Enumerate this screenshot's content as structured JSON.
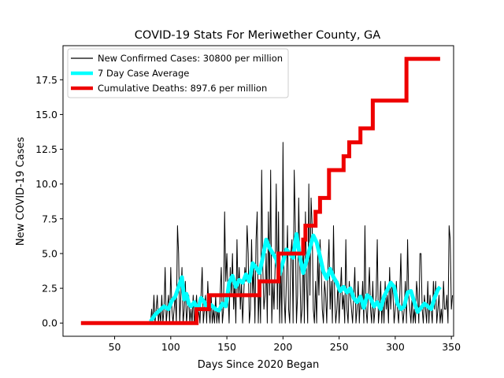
{
  "chart_data": {
    "type": "line",
    "title": "COVID-19 Stats For Meriwether County, GA",
    "xlabel": "Days Since 2020 Began",
    "ylabel": "New COVID-19 Cases",
    "xlim": [
      4,
      352
    ],
    "ylim": [
      -0.95,
      19.95
    ],
    "xticks": [
      50,
      100,
      150,
      200,
      250,
      300,
      350
    ],
    "yticks": [
      0.0,
      2.5,
      5.0,
      7.5,
      10.0,
      12.5,
      15.0,
      17.5
    ],
    "ytick_labels": [
      "0.0",
      "2.5",
      "5.0",
      "7.5",
      "10.0",
      "12.5",
      "15.0",
      "17.5"
    ],
    "grid": false,
    "legend_position": "upper-left",
    "series": [
      {
        "name": "New Confirmed Cases: 30800 per million",
        "color": "#000000",
        "x_start": 82,
        "values": [
          0,
          1,
          0,
          2,
          0,
          1,
          2,
          0,
          1,
          0,
          2,
          0,
          1,
          4,
          0,
          1,
          2,
          0,
          4,
          1,
          0,
          1,
          2,
          0,
          7,
          5,
          0,
          2,
          4,
          0,
          1,
          3,
          0,
          1,
          2,
          0,
          1,
          0,
          2,
          0,
          1,
          2,
          0,
          1,
          0,
          2,
          4,
          0,
          1,
          2,
          0,
          3,
          1,
          0,
          2,
          0,
          1,
          0,
          2,
          0,
          1,
          0,
          2,
          4,
          0,
          1,
          8,
          3,
          5,
          2,
          0,
          4,
          2,
          5,
          1,
          3,
          0,
          6,
          2,
          4,
          1,
          3,
          0,
          2,
          4,
          3,
          7,
          5,
          0,
          1,
          6,
          2,
          4,
          0,
          6,
          8,
          0,
          3,
          0,
          11,
          4,
          1,
          2,
          5,
          0,
          8,
          2,
          11,
          0,
          3,
          1,
          4,
          10,
          1,
          8,
          0,
          4,
          0,
          13,
          2,
          0,
          3,
          7,
          1,
          0,
          5,
          6,
          0,
          11,
          7,
          0,
          2,
          9,
          4,
          0,
          1,
          6,
          0,
          8,
          3,
          0,
          10,
          2,
          9,
          7,
          1,
          0,
          3,
          0,
          5,
          2,
          6,
          4,
          1,
          0,
          3,
          2,
          0,
          4,
          6,
          1,
          3,
          0,
          7,
          2,
          0,
          1,
          3,
          0,
          2,
          4,
          1,
          2,
          0,
          6,
          1,
          0,
          3,
          2,
          1,
          0,
          2,
          4,
          0,
          1,
          3,
          0,
          2,
          1,
          3,
          0,
          7,
          1,
          0,
          2,
          4,
          1,
          0,
          3,
          0,
          1,
          2,
          6,
          0,
          1,
          3,
          0,
          2,
          0,
          3,
          1,
          2,
          0,
          4,
          1,
          3,
          2,
          0,
          1,
          3,
          1,
          0,
          2,
          5,
          1,
          0,
          1,
          3,
          0,
          6,
          2,
          1,
          0,
          2,
          0,
          1,
          0,
          3,
          2,
          0,
          5,
          5,
          1,
          0,
          2,
          1,
          0,
          3,
          0,
          2,
          1,
          0,
          3,
          1,
          3,
          0,
          1,
          2,
          0,
          1,
          0,
          3,
          1,
          1,
          2,
          0,
          7,
          6,
          1,
          2
        ]
      },
      {
        "name": "7 Day Case Average",
        "color": "#00ffff",
        "points": [
          [
            82,
            0.1
          ],
          [
            86,
            0.6
          ],
          [
            90,
            0.9
          ],
          [
            94,
            1.2
          ],
          [
            98,
            1.0
          ],
          [
            101,
            1.6
          ],
          [
            104,
            1.9
          ],
          [
            107,
            2.6
          ],
          [
            110,
            3.3
          ],
          [
            112,
            1.7
          ],
          [
            114,
            2.1
          ],
          [
            116,
            1.4
          ],
          [
            118,
            1.2
          ],
          [
            121,
            1.5
          ],
          [
            124,
            0.9
          ],
          [
            127,
            1.8
          ],
          [
            130,
            1.5
          ],
          [
            133,
            1.0
          ],
          [
            136,
            1.3
          ],
          [
            140,
            1.0
          ],
          [
            143,
            0.9
          ],
          [
            146,
            1.4
          ],
          [
            149,
            1.2
          ],
          [
            152,
            2.9
          ],
          [
            155,
            3.4
          ],
          [
            158,
            2.6
          ],
          [
            161,
            3.1
          ],
          [
            164,
            2.9
          ],
          [
            167,
            3.5
          ],
          [
            170,
            3.0
          ],
          [
            173,
            4.3
          ],
          [
            176,
            4.0
          ],
          [
            179,
            3.6
          ],
          [
            182,
            4.7
          ],
          [
            185,
            6.0
          ],
          [
            188,
            5.4
          ],
          [
            191,
            5.0
          ],
          [
            194,
            4.6
          ],
          [
            197,
            3.5
          ],
          [
            200,
            4.4
          ],
          [
            203,
            5.3
          ],
          [
            206,
            5.0
          ],
          [
            209,
            4.7
          ],
          [
            212,
            6.4
          ],
          [
            215,
            4.8
          ],
          [
            218,
            3.6
          ],
          [
            221,
            4.5
          ],
          [
            224,
            5.4
          ],
          [
            227,
            6.3
          ],
          [
            230,
            5.8
          ],
          [
            233,
            4.8
          ],
          [
            236,
            3.7
          ],
          [
            239,
            3.2
          ],
          [
            242,
            3.9
          ],
          [
            245,
            3.3
          ],
          [
            248,
            2.9
          ],
          [
            251,
            2.3
          ],
          [
            254,
            2.6
          ],
          [
            257,
            2.2
          ],
          [
            260,
            2.5
          ],
          [
            263,
            1.8
          ],
          [
            266,
            1.5
          ],
          [
            269,
            1.9
          ],
          [
            272,
            1.1
          ],
          [
            275,
            2.0
          ],
          [
            278,
            1.8
          ],
          [
            281,
            1.2
          ],
          [
            284,
            1.5
          ],
          [
            287,
            1.0
          ],
          [
            290,
            1.9
          ],
          [
            293,
            2.4
          ],
          [
            296,
            2.9
          ],
          [
            299,
            2.6
          ],
          [
            302,
            1.4
          ],
          [
            305,
            1.0
          ],
          [
            308,
            1.2
          ],
          [
            311,
            2.2
          ],
          [
            314,
            2.3
          ],
          [
            317,
            1.5
          ],
          [
            320,
            0.8
          ],
          [
            323,
            1.1
          ],
          [
            326,
            1.4
          ],
          [
            329,
            1.2
          ],
          [
            332,
            1.0
          ],
          [
            335,
            1.8
          ],
          [
            338,
            2.4
          ],
          [
            340,
            2.6
          ]
        ]
      },
      {
        "name": "Cumulative Deaths: 897.6 per million",
        "color": "#ee0000",
        "steps": [
          [
            20,
            0
          ],
          [
            123,
            0
          ],
          [
            123,
            1
          ],
          [
            134,
            1
          ],
          [
            134,
            2
          ],
          [
            179,
            2
          ],
          [
            179,
            3
          ],
          [
            196,
            3
          ],
          [
            196,
            5
          ],
          [
            218,
            5
          ],
          [
            218,
            6
          ],
          [
            220,
            6
          ],
          [
            220,
            7
          ],
          [
            229,
            7
          ],
          [
            229,
            8
          ],
          [
            233,
            8
          ],
          [
            233,
            9
          ],
          [
            241,
            9
          ],
          [
            241,
            11
          ],
          [
            254,
            11
          ],
          [
            254,
            12
          ],
          [
            259,
            12
          ],
          [
            259,
            13
          ],
          [
            269,
            13
          ],
          [
            269,
            14
          ],
          [
            280,
            14
          ],
          [
            280,
            16
          ],
          [
            310,
            16
          ],
          [
            310,
            19
          ],
          [
            340,
            19
          ]
        ]
      }
    ]
  }
}
